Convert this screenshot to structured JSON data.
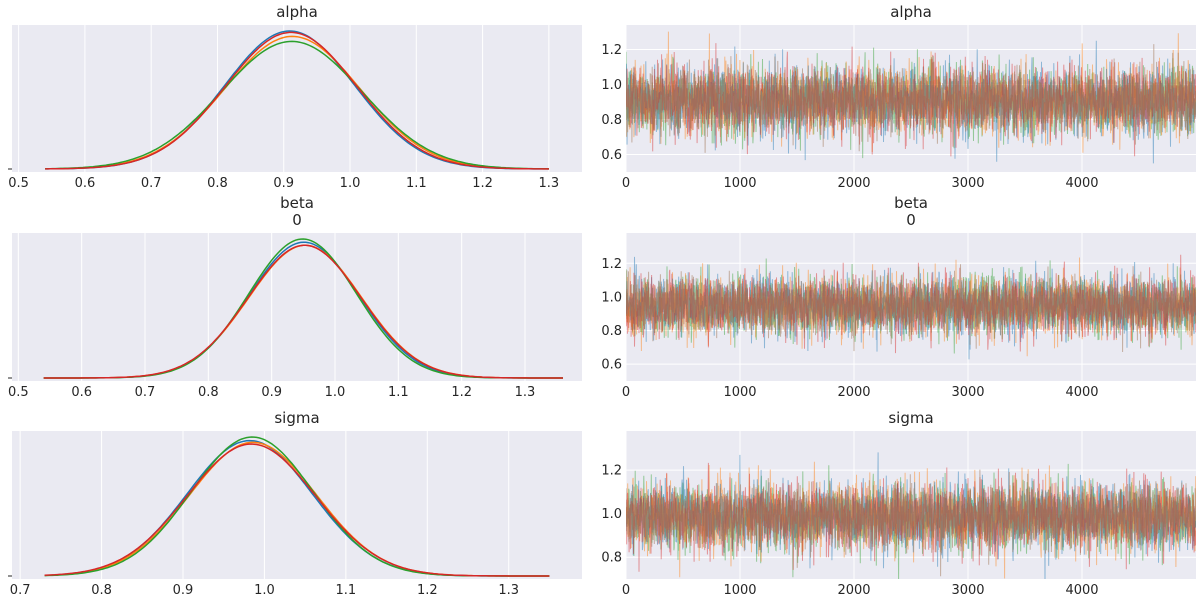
{
  "colors": {
    "background": "#eaeaf2",
    "grid": "#ffffff",
    "chains": [
      "#1f77b4",
      "#ff7f0e",
      "#2ca02c",
      "#d62728"
    ],
    "trace_mix": "#a37a5c"
  },
  "chart_data": [
    {
      "type": "line",
      "panel": "density",
      "title": "alpha",
      "xlim": [
        0.49,
        1.35
      ],
      "xticks": [
        0.5,
        0.6,
        0.7,
        0.8,
        0.9,
        1.0,
        1.1,
        1.2,
        1.3
      ],
      "xtick_labels": [
        "0.5",
        "0.6",
        "0.7",
        "0.8",
        "0.9",
        "1.0",
        "1.1",
        "1.2",
        "1.3"
      ],
      "grid": true,
      "chains": 4,
      "series": [
        {
          "mean": 0.909,
          "sd": 0.098,
          "range": [
            0.54,
            1.3
          ]
        },
        {
          "mean": 0.913,
          "sd": 0.102,
          "range": [
            0.54,
            1.3
          ]
        },
        {
          "mean": 0.912,
          "sd": 0.106,
          "range": [
            0.54,
            1.3
          ]
        },
        {
          "mean": 0.911,
          "sd": 0.099,
          "range": [
            0.54,
            1.3
          ]
        }
      ]
    },
    {
      "type": "line",
      "panel": "trace",
      "title": "alpha",
      "xlim": [
        0,
        5000
      ],
      "ylim": [
        0.5,
        1.34
      ],
      "xticks": [
        0,
        1000,
        2000,
        3000,
        4000
      ],
      "xtick_labels": [
        "0",
        "1000",
        "2000",
        "3000",
        "4000"
      ],
      "yticks": [
        0.6,
        0.8,
        1.0,
        1.2
      ],
      "ytick_labels": [
        "0.6",
        "0.8",
        "1.0",
        "1.2"
      ],
      "grid": true,
      "draws": 5000,
      "series": [
        {
          "mean": 0.91,
          "sd": 0.1
        },
        {
          "mean": 0.91,
          "sd": 0.1
        },
        {
          "mean": 0.91,
          "sd": 0.1
        },
        {
          "mean": 0.91,
          "sd": 0.1
        }
      ]
    },
    {
      "type": "line",
      "panel": "density",
      "title": "beta\n0",
      "xlim": [
        0.49,
        1.39
      ],
      "xticks": [
        0.5,
        0.6,
        0.7,
        0.8,
        0.9,
        1.0,
        1.1,
        1.2,
        1.3
      ],
      "xtick_labels": [
        "0.5",
        "0.6",
        "0.7",
        "0.8",
        "0.9",
        "1.0",
        "1.1",
        "1.2",
        "1.3"
      ],
      "grid": true,
      "chains": 4,
      "series": [
        {
          "mean": 0.951,
          "sd": 0.087,
          "range": [
            0.54,
            1.36
          ]
        },
        {
          "mean": 0.953,
          "sd": 0.089,
          "range": [
            0.54,
            1.36
          ]
        },
        {
          "mean": 0.949,
          "sd": 0.085,
          "range": [
            0.54,
            1.36
          ]
        },
        {
          "mean": 0.952,
          "sd": 0.089,
          "range": [
            0.54,
            1.36
          ]
        }
      ]
    },
    {
      "type": "line",
      "panel": "trace",
      "title": "beta\n0",
      "xlim": [
        0,
        5000
      ],
      "ylim": [
        0.5,
        1.38
      ],
      "xticks": [
        0,
        1000,
        2000,
        3000,
        4000
      ],
      "xtick_labels": [
        "0",
        "1000",
        "2000",
        "3000",
        "4000"
      ],
      "yticks": [
        0.6,
        0.8,
        1.0,
        1.2
      ],
      "ytick_labels": [
        "0.6",
        "0.8",
        "1.0",
        "1.2"
      ],
      "grid": true,
      "draws": 5000,
      "series": [
        {
          "mean": 0.95,
          "sd": 0.088
        },
        {
          "mean": 0.95,
          "sd": 0.088
        },
        {
          "mean": 0.95,
          "sd": 0.088
        },
        {
          "mean": 0.95,
          "sd": 0.088
        }
      ]
    },
    {
      "type": "line",
      "panel": "density",
      "title": "sigma",
      "xlim": [
        0.69,
        1.39
      ],
      "xticks": [
        0.7,
        0.8,
        0.9,
        1.0,
        1.1,
        1.2,
        1.3
      ],
      "xtick_labels": [
        "0.7",
        "0.8",
        "0.9",
        "1.0",
        "1.1",
        "1.2",
        "1.3"
      ],
      "grid": true,
      "chains": 4,
      "series": [
        {
          "mean": 0.982,
          "sd": 0.077,
          "range": [
            0.73,
            1.35
          ]
        },
        {
          "mean": 0.986,
          "sd": 0.078,
          "range": [
            0.73,
            1.35
          ]
        },
        {
          "mean": 0.985,
          "sd": 0.075,
          "range": [
            0.73,
            1.35
          ]
        },
        {
          "mean": 0.984,
          "sd": 0.079,
          "range": [
            0.73,
            1.35
          ]
        }
      ]
    },
    {
      "type": "line",
      "panel": "trace",
      "title": "sigma",
      "xlim": [
        0,
        5000
      ],
      "ylim": [
        0.7,
        1.38
      ],
      "xticks": [
        0,
        1000,
        2000,
        3000,
        4000
      ],
      "xtick_labels": [
        "0",
        "1000",
        "2000",
        "3000",
        "4000"
      ],
      "yticks": [
        0.8,
        1.0,
        1.2
      ],
      "ytick_labels": [
        "0.8",
        "1.0",
        "1.2"
      ],
      "grid": true,
      "draws": 5000,
      "series": [
        {
          "mean": 0.985,
          "sd": 0.078
        },
        {
          "mean": 0.985,
          "sd": 0.078
        },
        {
          "mean": 0.985,
          "sd": 0.078
        },
        {
          "mean": 0.985,
          "sd": 0.078
        }
      ]
    }
  ]
}
